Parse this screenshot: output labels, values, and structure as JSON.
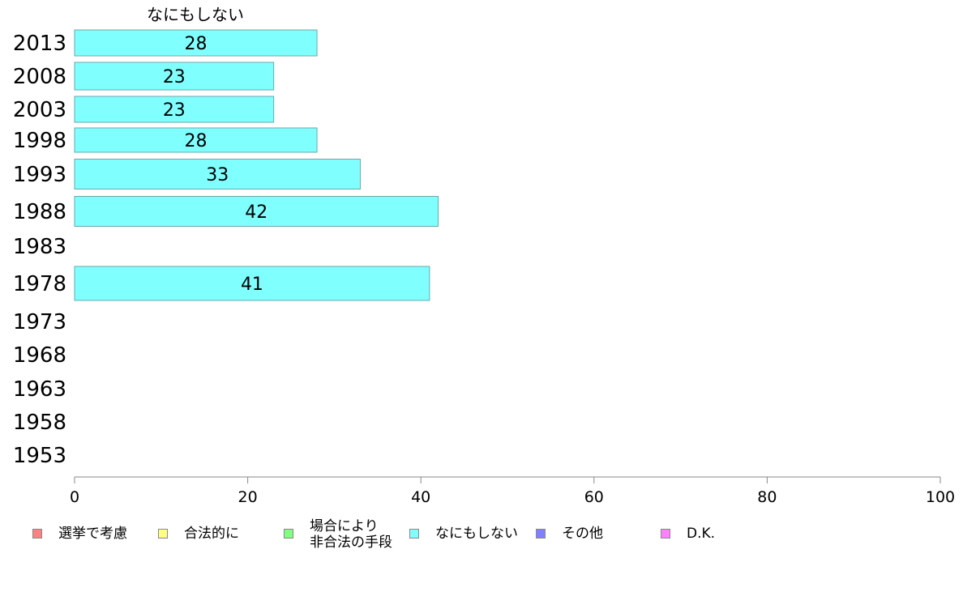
{
  "chart_data": {
    "type": "bar",
    "orientation": "horizontal",
    "stacked": true,
    "title": "なにもしない",
    "categories": [
      "2013",
      "2008",
      "2003",
      "1998",
      "1993",
      "1988",
      "1983",
      "1978",
      "1973",
      "1968",
      "1963",
      "1958",
      "1953"
    ],
    "series": [
      {
        "name": "なにもしない",
        "color": "#80ffff",
        "values": [
          28,
          23,
          23,
          28,
          33,
          42,
          null,
          41,
          null,
          null,
          null,
          null,
          null
        ],
        "labels": [
          "28",
          "23",
          "23",
          "28",
          "33",
          "42",
          "",
          "41",
          "",
          "",
          "",
          "",
          ""
        ]
      }
    ],
    "xlim": [
      0,
      100
    ],
    "xticks": [
      "0",
      "20",
      "40",
      "60",
      "80",
      "100"
    ],
    "grid": false,
    "legend_position": "bottom",
    "legend": [
      {
        "label": "選挙で考慮",
        "color": "#ff8080"
      },
      {
        "label": "合法的に",
        "color": "#ffff80"
      },
      {
        "label": "場合により\n非合法の手段",
        "color": "#80ff80"
      },
      {
        "label": "なにもしない",
        "color": "#80ffff"
      },
      {
        "label": "その他",
        "color": "#8080ff"
      },
      {
        "label": "D.K.",
        "color": "#ff80ff"
      }
    ]
  }
}
